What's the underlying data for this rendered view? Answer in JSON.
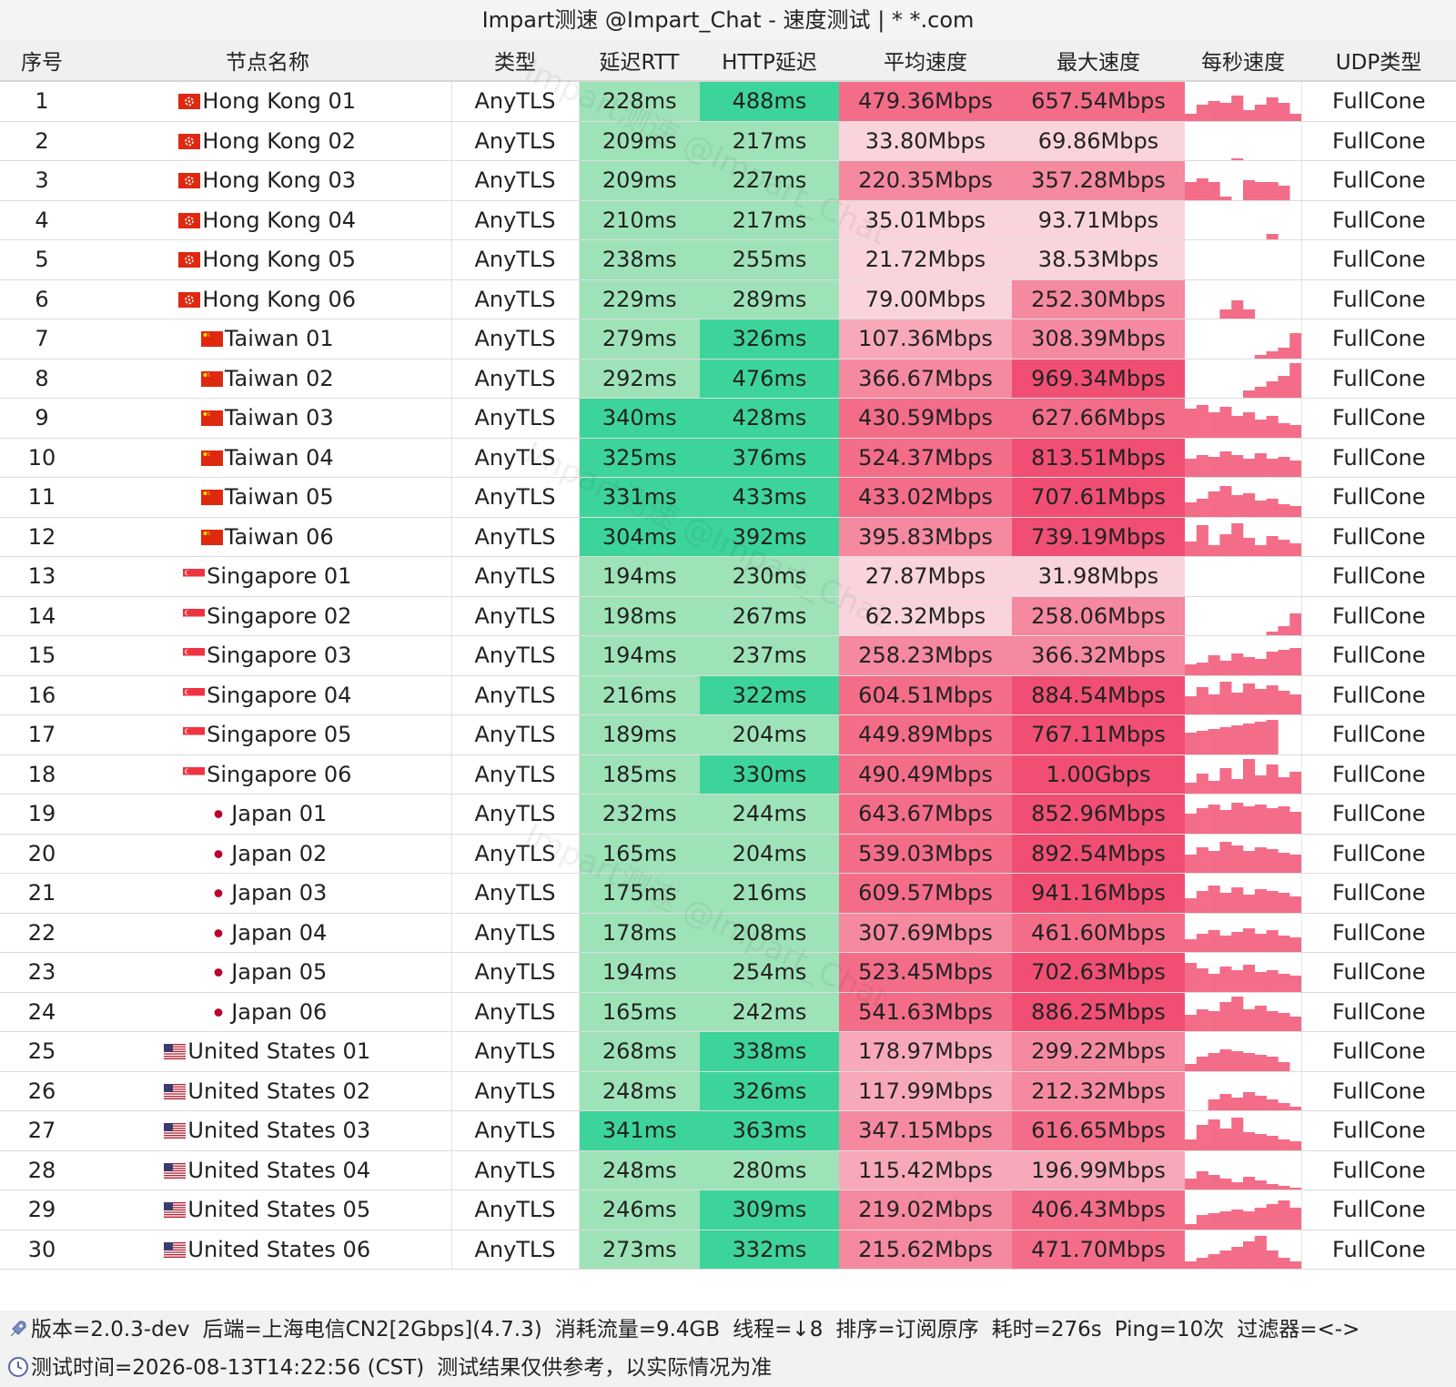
{
  "title": "Impart测速 @Impart_Chat - 速度测试 | * *.com",
  "watermark": "Impart测速 @Impart_Chat",
  "headers": [
    "序号",
    "节点名称",
    "类型",
    "延迟RTT",
    "HTTP延迟",
    "平均速度",
    "最大速度",
    "每秒速度",
    "UDP类型"
  ],
  "colors": {
    "rtt_light": "#9ee3b8",
    "rtt_dark": "#3dd49b",
    "speed_scale": [
      "#fad4dc",
      "#f7a9b9",
      "#f5899f",
      "#f36d89",
      "#f04f73"
    ],
    "sparkline": "#f36d89"
  },
  "rows": [
    {
      "idx": "1",
      "flag": "hk",
      "name": "Hong Kong 01",
      "type": "AnyTLS",
      "rtt": "228ms",
      "http": "488ms",
      "avg": "479.36Mbps",
      "max": "657.54Mbps",
      "udp": "FullCone",
      "avg_v": 479.36,
      "max_v": 657.54,
      "rtt_v": 228,
      "http_v": 488,
      "spark": [
        0.2,
        0.45,
        0.55,
        0.5,
        0.7,
        0.3,
        0.45,
        0.65,
        0.5,
        0.2
      ]
    },
    {
      "idx": "2",
      "flag": "hk",
      "name": "Hong Kong 02",
      "type": "AnyTLS",
      "rtt": "209ms",
      "http": "217ms",
      "avg": "33.80Mbps",
      "max": "69.86Mbps",
      "udp": "FullCone",
      "avg_v": 33.8,
      "max_v": 69.86,
      "rtt_v": 209,
      "http_v": 217,
      "spark": [
        0,
        0,
        0,
        0,
        0.05,
        0,
        0,
        0,
        0,
        0
      ]
    },
    {
      "idx": "3",
      "flag": "hk",
      "name": "Hong Kong 03",
      "type": "AnyTLS",
      "rtt": "209ms",
      "http": "227ms",
      "avg": "220.35Mbps",
      "max": "357.28Mbps",
      "udp": "FullCone",
      "avg_v": 220.35,
      "max_v": 357.28,
      "rtt_v": 209,
      "http_v": 227,
      "spark": [
        0.5,
        0.6,
        0.5,
        0.1,
        0,
        0.55,
        0.5,
        0.5,
        0.4,
        0
      ]
    },
    {
      "idx": "4",
      "flag": "hk",
      "name": "Hong Kong 04",
      "type": "AnyTLS",
      "rtt": "210ms",
      "http": "217ms",
      "avg": "35.01Mbps",
      "max": "93.71Mbps",
      "udp": "FullCone",
      "avg_v": 35.01,
      "max_v": 93.71,
      "rtt_v": 210,
      "http_v": 217,
      "spark": [
        0,
        0,
        0,
        0,
        0,
        0,
        0,
        0.15,
        0,
        0
      ]
    },
    {
      "idx": "5",
      "flag": "hk",
      "name": "Hong Kong 05",
      "type": "AnyTLS",
      "rtt": "238ms",
      "http": "255ms",
      "avg": "21.72Mbps",
      "max": "38.53Mbps",
      "udp": "FullCone",
      "avg_v": 21.72,
      "max_v": 38.53,
      "rtt_v": 238,
      "http_v": 255,
      "spark": [
        0,
        0,
        0,
        0,
        0,
        0,
        0,
        0,
        0,
        0
      ]
    },
    {
      "idx": "6",
      "flag": "hk",
      "name": "Hong Kong 06",
      "type": "AnyTLS",
      "rtt": "229ms",
      "http": "289ms",
      "avg": "79.00Mbps",
      "max": "252.30Mbps",
      "udp": "FullCone",
      "avg_v": 79.0,
      "max_v": 252.3,
      "rtt_v": 229,
      "http_v": 289,
      "spark": [
        0,
        0,
        0,
        0.25,
        0.5,
        0.25,
        0,
        0,
        0,
        0
      ]
    },
    {
      "idx": "7",
      "flag": "tw",
      "name": "Taiwan 01",
      "type": "AnyTLS",
      "rtt": "279ms",
      "http": "326ms",
      "avg": "107.36Mbps",
      "max": "308.39Mbps",
      "udp": "FullCone",
      "avg_v": 107.36,
      "max_v": 308.39,
      "rtt_v": 279,
      "http_v": 326,
      "spark": [
        0,
        0,
        0,
        0,
        0,
        0,
        0.1,
        0.2,
        0.3,
        0.7
      ]
    },
    {
      "idx": "8",
      "flag": "tw",
      "name": "Taiwan 02",
      "type": "AnyTLS",
      "rtt": "292ms",
      "http": "476ms",
      "avg": "366.67Mbps",
      "max": "969.34Mbps",
      "udp": "FullCone",
      "avg_v": 366.67,
      "max_v": 969.34,
      "rtt_v": 292,
      "http_v": 476,
      "spark": [
        0,
        0,
        0,
        0,
        0,
        0.2,
        0.3,
        0.45,
        0.6,
        0.95
      ]
    },
    {
      "idx": "9",
      "flag": "tw",
      "name": "Taiwan 03",
      "type": "AnyTLS",
      "rtt": "340ms",
      "http": "428ms",
      "avg": "430.59Mbps",
      "max": "627.66Mbps",
      "udp": "FullCone",
      "avg_v": 430.59,
      "max_v": 627.66,
      "rtt_v": 340,
      "http_v": 428,
      "spark": [
        0.8,
        0.9,
        0.7,
        0.85,
        0.6,
        0.7,
        0.5,
        0.6,
        0.4,
        0.35
      ]
    },
    {
      "idx": "10",
      "flag": "tw",
      "name": "Taiwan 04",
      "type": "AnyTLS",
      "rtt": "325ms",
      "http": "376ms",
      "avg": "524.37Mbps",
      "max": "813.51Mbps",
      "udp": "FullCone",
      "avg_v": 524.37,
      "max_v": 813.51,
      "rtt_v": 325,
      "http_v": 376,
      "spark": [
        0.5,
        0.6,
        0.55,
        0.7,
        0.6,
        0.5,
        0.65,
        0.5,
        0.55,
        0.45
      ]
    },
    {
      "idx": "11",
      "flag": "tw",
      "name": "Taiwan 05",
      "type": "AnyTLS",
      "rtt": "331ms",
      "http": "433ms",
      "avg": "433.02Mbps",
      "max": "707.61Mbps",
      "udp": "FullCone",
      "avg_v": 433.02,
      "max_v": 707.61,
      "rtt_v": 331,
      "http_v": 433,
      "spark": [
        0.4,
        0.5,
        0.7,
        0.85,
        0.6,
        0.65,
        0.45,
        0.5,
        0.35,
        0.3
      ]
    },
    {
      "idx": "12",
      "flag": "tw",
      "name": "Taiwan 06",
      "type": "AnyTLS",
      "rtt": "304ms",
      "http": "392ms",
      "avg": "395.83Mbps",
      "max": "739.19Mbps",
      "udp": "FullCone",
      "avg_v": 395.83,
      "max_v": 739.19,
      "rtt_v": 304,
      "http_v": 392,
      "spark": [
        0.4,
        0.85,
        0.3,
        0.6,
        0.9,
        0.5,
        0.3,
        0.55,
        0.45,
        0.35
      ]
    },
    {
      "idx": "13",
      "flag": "sg",
      "name": "Singapore 01",
      "type": "AnyTLS",
      "rtt": "194ms",
      "http": "230ms",
      "avg": "27.87Mbps",
      "max": "31.98Mbps",
      "udp": "FullCone",
      "avg_v": 27.87,
      "max_v": 31.98,
      "rtt_v": 194,
      "http_v": 230,
      "spark": [
        0,
        0,
        0,
        0,
        0,
        0,
        0,
        0,
        0,
        0
      ]
    },
    {
      "idx": "14",
      "flag": "sg",
      "name": "Singapore 02",
      "type": "AnyTLS",
      "rtt": "198ms",
      "http": "267ms",
      "avg": "62.32Mbps",
      "max": "258.06Mbps",
      "udp": "FullCone",
      "avg_v": 62.32,
      "max_v": 258.06,
      "rtt_v": 198,
      "http_v": 267,
      "spark": [
        0,
        0,
        0,
        0,
        0,
        0,
        0,
        0.1,
        0.25,
        0.6
      ]
    },
    {
      "idx": "15",
      "flag": "sg",
      "name": "Singapore 03",
      "type": "AnyTLS",
      "rtt": "194ms",
      "http": "237ms",
      "avg": "258.23Mbps",
      "max": "366.32Mbps",
      "udp": "FullCone",
      "avg_v": 258.23,
      "max_v": 366.32,
      "rtt_v": 194,
      "http_v": 237,
      "spark": [
        0.3,
        0.35,
        0.55,
        0.4,
        0.6,
        0.5,
        0.45,
        0.65,
        0.7,
        0.75
      ]
    },
    {
      "idx": "16",
      "flag": "sg",
      "name": "Singapore 04",
      "type": "AnyTLS",
      "rtt": "216ms",
      "http": "322ms",
      "avg": "604.51Mbps",
      "max": "884.54Mbps",
      "udp": "FullCone",
      "avg_v": 604.51,
      "max_v": 884.54,
      "rtt_v": 216,
      "http_v": 322,
      "spark": [
        0.5,
        0.75,
        0.55,
        0.9,
        0.6,
        0.85,
        0.7,
        0.8,
        0.65,
        0.55
      ]
    },
    {
      "idx": "17",
      "flag": "sg",
      "name": "Singapore 05",
      "type": "AnyTLS",
      "rtt": "189ms",
      "http": "204ms",
      "avg": "449.89Mbps",
      "max": "767.11Mbps",
      "udp": "FullCone",
      "avg_v": 449.89,
      "max_v": 767.11,
      "rtt_v": 189,
      "http_v": 204,
      "spark": [
        0.6,
        0.65,
        0.7,
        0.75,
        0.8,
        0.85,
        0.9,
        0.95,
        0,
        0
      ]
    },
    {
      "idx": "18",
      "flag": "sg",
      "name": "Singapore 06",
      "type": "AnyTLS",
      "rtt": "185ms",
      "http": "330ms",
      "avg": "490.49Mbps",
      "max": "1.00Gbps",
      "udp": "FullCone",
      "avg_v": 490.49,
      "max_v": 1000,
      "rtt_v": 185,
      "http_v": 330,
      "spark": [
        0.3,
        0.55,
        0.35,
        0.7,
        0.4,
        0.95,
        0.5,
        0.8,
        0.45,
        0.6
      ]
    },
    {
      "idx": "19",
      "flag": "jp",
      "name": "Japan 01",
      "type": "AnyTLS",
      "rtt": "232ms",
      "http": "244ms",
      "avg": "643.67Mbps",
      "max": "852.96Mbps",
      "udp": "FullCone",
      "avg_v": 643.67,
      "max_v": 852.96,
      "rtt_v": 232,
      "http_v": 244,
      "spark": [
        0.55,
        0.7,
        0.8,
        0.65,
        0.85,
        0.75,
        0.8,
        0.7,
        0.75,
        0.6
      ]
    },
    {
      "idx": "20",
      "flag": "jp",
      "name": "Japan 02",
      "type": "AnyTLS",
      "rtt": "165ms",
      "http": "204ms",
      "avg": "539.03Mbps",
      "max": "892.54Mbps",
      "udp": "FullCone",
      "avg_v": 539.03,
      "max_v": 892.54,
      "rtt_v": 165,
      "http_v": 204,
      "spark": [
        0.5,
        0.7,
        0.6,
        0.85,
        0.75,
        0.6,
        0.7,
        0.65,
        0.55,
        0.5
      ]
    },
    {
      "idx": "21",
      "flag": "jp",
      "name": "Japan 03",
      "type": "AnyTLS",
      "rtt": "175ms",
      "http": "216ms",
      "avg": "609.57Mbps",
      "max": "941.16Mbps",
      "udp": "FullCone",
      "avg_v": 609.57,
      "max_v": 941.16,
      "rtt_v": 175,
      "http_v": 216,
      "spark": [
        0.4,
        0.6,
        0.75,
        0.55,
        0.7,
        0.5,
        0.65,
        0.6,
        0.55,
        0.45
      ]
    },
    {
      "idx": "22",
      "flag": "jp",
      "name": "Japan 04",
      "type": "AnyTLS",
      "rtt": "178ms",
      "http": "208ms",
      "avg": "307.69Mbps",
      "max": "461.60Mbps",
      "udp": "FullCone",
      "avg_v": 307.69,
      "max_v": 461.6,
      "rtt_v": 178,
      "http_v": 208,
      "spark": [
        0.35,
        0.5,
        0.6,
        0.45,
        0.55,
        0.65,
        0.5,
        0.6,
        0.45,
        0.4
      ]
    },
    {
      "idx": "23",
      "flag": "jp",
      "name": "Japan 05",
      "type": "AnyTLS",
      "rtt": "194ms",
      "http": "254ms",
      "avg": "523.45Mbps",
      "max": "702.63Mbps",
      "udp": "FullCone",
      "avg_v": 523.45,
      "max_v": 702.63,
      "rtt_v": 194,
      "http_v": 254,
      "spark": [
        0.8,
        0.65,
        0.5,
        0.7,
        0.6,
        0.75,
        0.55,
        0.6,
        0.5,
        0.45
      ]
    },
    {
      "idx": "24",
      "flag": "jp",
      "name": "Japan 06",
      "type": "AnyTLS",
      "rtt": "165ms",
      "http": "242ms",
      "avg": "541.63Mbps",
      "max": "886.25Mbps",
      "udp": "FullCone",
      "avg_v": 541.63,
      "max_v": 886.25,
      "rtt_v": 165,
      "http_v": 242,
      "spark": [
        0.45,
        0.6,
        0.55,
        0.8,
        0.95,
        0.6,
        0.7,
        0.55,
        0.5,
        0.4
      ]
    },
    {
      "idx": "25",
      "flag": "us",
      "name": "United States 01",
      "type": "AnyTLS",
      "rtt": "268ms",
      "http": "338ms",
      "avg": "178.97Mbps",
      "max": "299.22Mbps",
      "udp": "FullCone",
      "avg_v": 178.97,
      "max_v": 299.22,
      "rtt_v": 268,
      "http_v": 338,
      "spark": [
        0.2,
        0.4,
        0.5,
        0.6,
        0.55,
        0.5,
        0.45,
        0.4,
        0.25,
        0
      ]
    },
    {
      "idx": "26",
      "flag": "us",
      "name": "United States 02",
      "type": "AnyTLS",
      "rtt": "248ms",
      "http": "326ms",
      "avg": "117.99Mbps",
      "max": "212.32Mbps",
      "udp": "FullCone",
      "avg_v": 117.99,
      "max_v": 212.32,
      "rtt_v": 248,
      "http_v": 326,
      "spark": [
        0,
        0,
        0.3,
        0.45,
        0.35,
        0.5,
        0.4,
        0.3,
        0.2,
        0.1
      ]
    },
    {
      "idx": "27",
      "flag": "us",
      "name": "United States 03",
      "type": "AnyTLS",
      "rtt": "341ms",
      "http": "363ms",
      "avg": "347.15Mbps",
      "max": "616.65Mbps",
      "udp": "FullCone",
      "avg_v": 347.15,
      "max_v": 616.65,
      "rtt_v": 341,
      "http_v": 363,
      "spark": [
        0.3,
        0.7,
        0.85,
        0.6,
        0.9,
        0.5,
        0.45,
        0.4,
        0.3,
        0.25
      ]
    },
    {
      "idx": "28",
      "flag": "us",
      "name": "United States 04",
      "type": "AnyTLS",
      "rtt": "248ms",
      "http": "280ms",
      "avg": "115.42Mbps",
      "max": "196.99Mbps",
      "udp": "FullCone",
      "avg_v": 115.42,
      "max_v": 196.99,
      "rtt_v": 248,
      "http_v": 280,
      "spark": [
        0.3,
        0.5,
        0.4,
        0.3,
        0.2,
        0.35,
        0.25,
        0.15,
        0.1,
        0.05
      ]
    },
    {
      "idx": "29",
      "flag": "us",
      "name": "United States 05",
      "type": "AnyTLS",
      "rtt": "246ms",
      "http": "309ms",
      "avg": "219.02Mbps",
      "max": "406.43Mbps",
      "udp": "FullCone",
      "avg_v": 219.02,
      "max_v": 406.43,
      "rtt_v": 246,
      "http_v": 309,
      "spark": [
        0.15,
        0.4,
        0.45,
        0.5,
        0.55,
        0.5,
        0.6,
        0.7,
        0.8,
        0.6
      ]
    },
    {
      "idx": "30",
      "flag": "us",
      "name": "United States 06",
      "type": "AnyTLS",
      "rtt": "273ms",
      "http": "332ms",
      "avg": "215.62Mbps",
      "max": "471.70Mbps",
      "udp": "FullCone",
      "avg_v": 215.62,
      "max_v": 471.7,
      "rtt_v": 273,
      "http_v": 332,
      "spark": [
        0.2,
        0.3,
        0.4,
        0.5,
        0.6,
        0.75,
        0.9,
        0.5,
        0.3,
        0.2
      ]
    }
  ],
  "footer": {
    "line1_icon": "rocket-icon",
    "line1": [
      "版本=2.0.3-dev",
      "后端=上海电信CN2[2Gbps](4.7.3)",
      "消耗流量=9.4GB",
      "线程=↓8",
      "排序=订阅原序",
      "耗时=276s",
      "Ping=10次",
      "过滤器=<->"
    ],
    "line2_icon": "clock-icon",
    "line2": [
      "测试时间=2026-08-13T14:22:56 (CST)",
      "测试结果仅供参考，以实际情况为准"
    ]
  }
}
